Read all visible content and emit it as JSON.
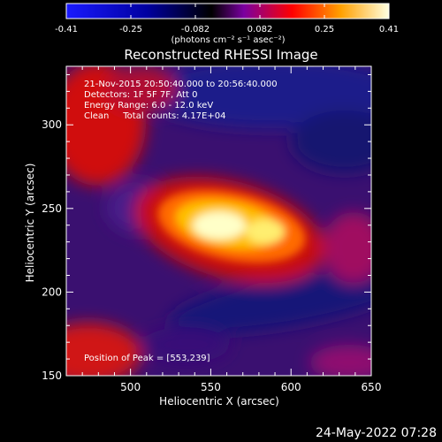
{
  "colorbar": {
    "tick_labels": [
      "-0.41",
      "-0.25",
      "-0.082",
      "0.082",
      "0.25",
      "0.41"
    ],
    "units_text": "(photons cm⁻² s⁻¹ asec⁻²)",
    "range": [
      -0.41,
      0.41
    ],
    "colors": [
      "#1a1aff",
      "#000000",
      "#7a00a0",
      "#ff0000",
      "#ffa000",
      "#ffffe0"
    ]
  },
  "title": "Reconstructed RHESSI Image",
  "info_lines": [
    "21-Nov-2015 20:50:40.000 to 20:56:40.000",
    "Detectors: 1F 5F 7F, Att 0",
    "Energy Range: 6.0 - 12.0 keV",
    "Clean     Total counts: 4.17E+04"
  ],
  "peak_text": "Position of Peak = [553,239]",
  "x_axis": {
    "label": "Heliocentric X (arcsec)",
    "range": [
      460,
      650
    ],
    "ticks": [
      500,
      550,
      600,
      650
    ]
  },
  "y_axis": {
    "label": "Heliocentric Y (arcsec)",
    "range": [
      150,
      335
    ],
    "ticks": [
      150,
      200,
      250,
      300
    ]
  },
  "timestamp": "24-May-2022 07:28"
}
